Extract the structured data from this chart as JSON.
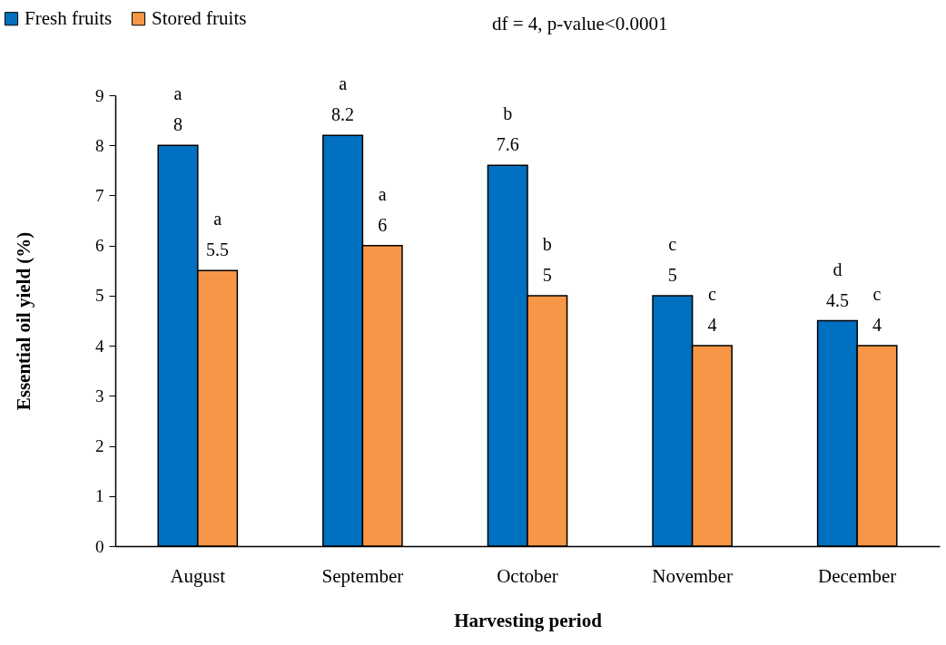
{
  "chart_data": {
    "type": "bar",
    "xlabel": "Harvesting period",
    "ylabel": "Essential oil yield (%)",
    "categories": [
      "August",
      "September",
      "October",
      "November",
      "December"
    ],
    "series": [
      {
        "name": "Fresh fruits",
        "color": "#0070c0",
        "values": [
          8,
          8.2,
          7.6,
          5,
          4.5
        ]
      },
      {
        "name": "Stored fruits",
        "color": "#f79646",
        "values": [
          5.5,
          6,
          5,
          4,
          4
        ]
      }
    ],
    "ylim": [
      0,
      9
    ],
    "yticks": [
      0,
      1,
      2,
      3,
      4,
      5,
      6,
      7,
      8,
      9
    ],
    "grid": false,
    "legend": "top left",
    "data_labels": true,
    "annotations": [
      "df = 4, p-value<0.0001",
      {
        "text": "a",
        "x": "August",
        "y": 8
      },
      {
        "text": "a",
        "x": "August",
        "y": 5.5
      },
      {
        "text": "a",
        "x": "September",
        "y": 8.2
      },
      {
        "text": "a",
        "x": "September",
        "y": 6
      },
      {
        "text": "b",
        "x": "October",
        "y": 7.6
      },
      {
        "text": "b",
        "x": "October",
        "y": 5
      },
      {
        "text": "c",
        "x": "November",
        "y": 5
      },
      {
        "text": "c",
        "x": "November",
        "y": 4
      },
      {
        "text": "d",
        "x": "December",
        "y": 4.5
      },
      {
        "text": "c",
        "x": "December",
        "y": 4
      }
    ]
  }
}
